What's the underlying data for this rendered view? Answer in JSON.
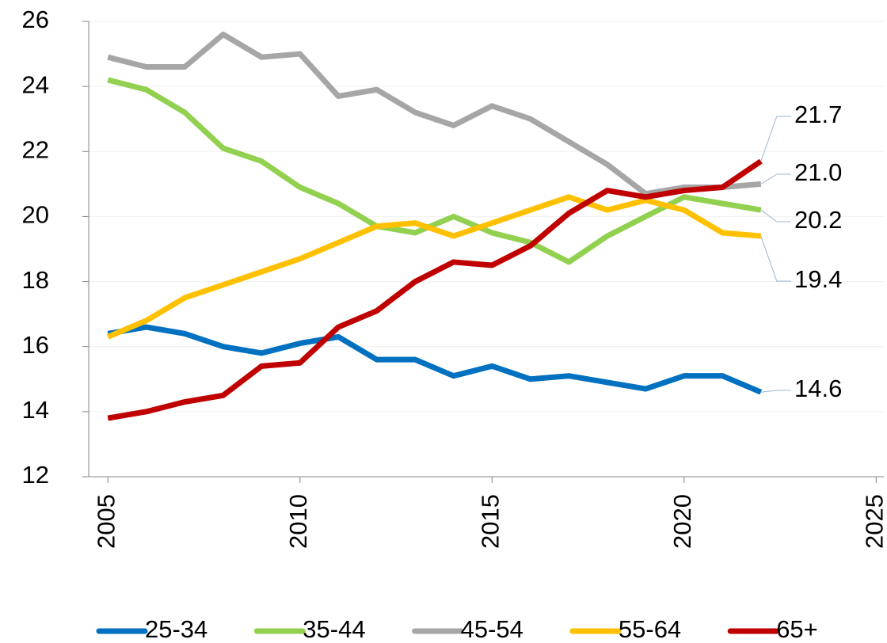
{
  "chart_data": {
    "type": "line",
    "x": [
      2005,
      2006,
      2007,
      2008,
      2009,
      2010,
      2011,
      2012,
      2013,
      2014,
      2015,
      2016,
      2017,
      2018,
      2019,
      2020,
      2021,
      2022
    ],
    "series": [
      {
        "name": "25-34",
        "color": "#0070c0",
        "values": [
          16.4,
          16.6,
          16.4,
          16.0,
          15.8,
          16.1,
          16.3,
          15.6,
          15.6,
          15.1,
          15.4,
          15.0,
          15.1,
          14.9,
          14.7,
          15.1,
          15.1,
          14.6
        ],
        "value_labels": [
          null,
          null,
          null,
          null,
          null,
          null,
          null,
          null,
          null,
          null,
          null,
          null,
          null,
          null,
          null,
          null,
          null,
          "14.6"
        ]
      },
      {
        "name": "35-44",
        "color": "#92d050",
        "values": [
          24.2,
          23.9,
          23.2,
          22.1,
          21.7,
          20.9,
          20.4,
          19.7,
          19.5,
          20.0,
          19.5,
          19.2,
          18.6,
          19.4,
          20.0,
          20.6,
          20.4,
          20.2
        ],
        "value_labels": [
          null,
          null,
          null,
          null,
          null,
          null,
          null,
          null,
          null,
          null,
          null,
          null,
          null,
          null,
          null,
          null,
          null,
          "20.2"
        ]
      },
      {
        "name": "45-54",
        "color": "#a6a6a6",
        "values": [
          24.9,
          24.6,
          24.6,
          25.6,
          24.9,
          25.0,
          23.7,
          23.9,
          23.2,
          22.8,
          23.4,
          23.0,
          22.3,
          21.6,
          20.7,
          20.9,
          20.9,
          21.0
        ],
        "value_labels": [
          null,
          null,
          null,
          null,
          null,
          null,
          null,
          null,
          null,
          null,
          null,
          null,
          null,
          null,
          null,
          null,
          null,
          "21.0"
        ]
      },
      {
        "name": "55-64",
        "color": "#ffc000",
        "values": [
          16.3,
          16.8,
          17.5,
          17.9,
          18.3,
          18.7,
          19.2,
          19.7,
          19.8,
          19.4,
          19.8,
          20.2,
          20.6,
          20.2,
          20.5,
          20.2,
          19.5,
          19.4
        ],
        "value_labels": [
          null,
          null,
          null,
          null,
          null,
          null,
          null,
          null,
          null,
          null,
          null,
          null,
          null,
          null,
          null,
          null,
          null,
          "19.4"
        ]
      },
      {
        "name": "65+",
        "color": "#c00000",
        "values": [
          13.8,
          14.0,
          14.3,
          14.5,
          15.4,
          15.5,
          16.6,
          17.1,
          18.0,
          18.6,
          18.5,
          19.1,
          20.1,
          20.8,
          20.6,
          20.8,
          20.9,
          21.7
        ],
        "value_labels": [
          null,
          null,
          null,
          null,
          null,
          null,
          null,
          null,
          null,
          null,
          null,
          null,
          null,
          null,
          null,
          null,
          null,
          "21.7"
        ]
      }
    ],
    "xlim": [
      2004.5,
      2025.2
    ],
    "xticks": [
      2005,
      2010,
      2015,
      2020,
      2025
    ],
    "ylim": [
      12,
      26
    ],
    "yticks": [
      12,
      14,
      16,
      18,
      20,
      22,
      24,
      26
    ],
    "grid": true,
    "legend": "bottom"
  }
}
